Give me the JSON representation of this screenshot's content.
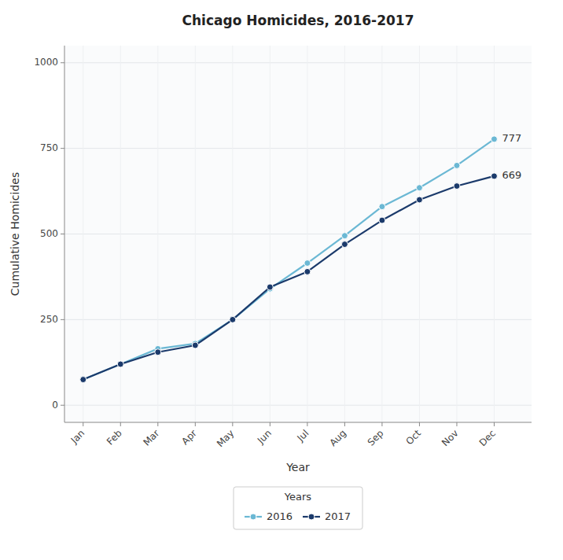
{
  "chart_data": {
    "type": "line",
    "title": "Chicago Homicides, 2016-2017",
    "x_label": "Year",
    "y_label": "Cumulative Homicides",
    "categories": [
      "Jan",
      "Feb",
      "Mar",
      "Apr",
      "May",
      "Jun",
      "Jul",
      "Aug",
      "Sep",
      "Oct",
      "Nov",
      "Dec"
    ],
    "series": [
      {
        "name": "2016",
        "color": "#6bb8d4",
        "marker": "circle",
        "values": [
          75,
          120,
          165,
          180,
          250,
          340,
          415,
          495,
          580,
          635,
          700,
          777
        ]
      },
      {
        "name": "2017",
        "color": "#1b3a6b",
        "marker": "circle",
        "values": [
          75,
          120,
          155,
          175,
          250,
          345,
          390,
          470,
          540,
          600,
          640,
          669
        ]
      }
    ],
    "annotations": [
      {
        "text": "777",
        "x": "Dec",
        "y": 777
      },
      {
        "text": "669",
        "x": "Dec",
        "y": 669
      }
    ],
    "ylim": [
      -50,
      1050
    ],
    "yticks": [
      0,
      250,
      500,
      750,
      1000
    ],
    "grid": true,
    "legend": "bottom",
    "legend_title": "Years"
  }
}
